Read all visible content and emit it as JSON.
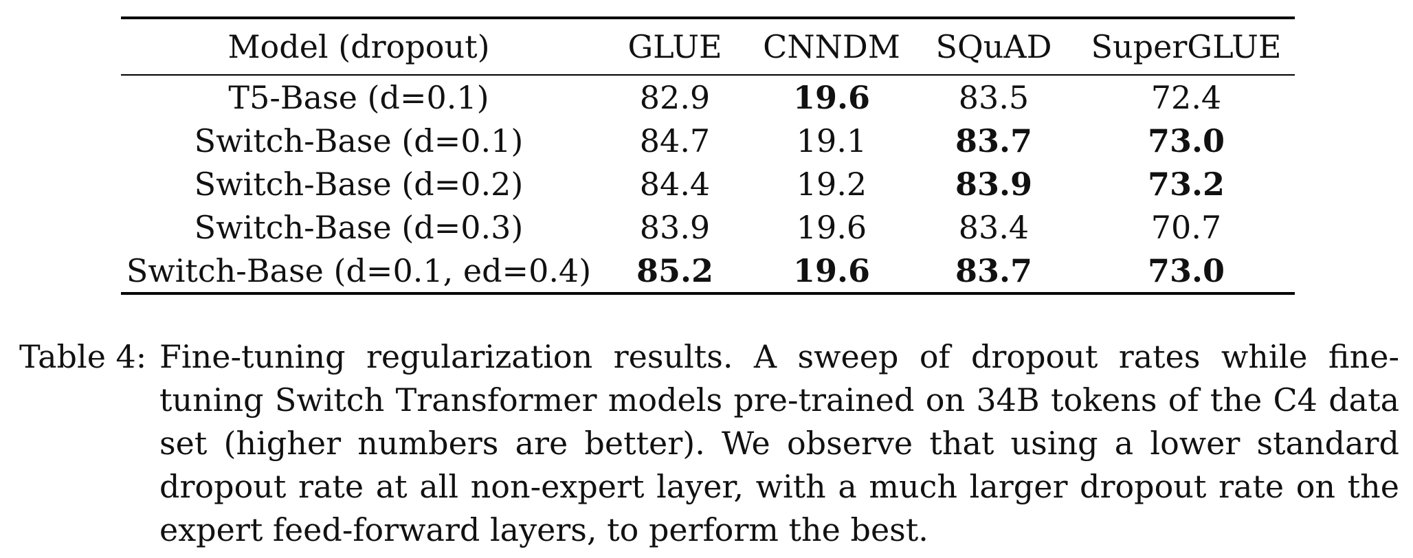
{
  "table": {
    "columns": [
      "Model (dropout)",
      "GLUE",
      "CNNDM",
      "SQuAD",
      "SuperGLUE"
    ],
    "rows": [
      {
        "model": "T5-Base (d=0.1)",
        "glue": "82.9",
        "cnndm": "19.6",
        "squad": "83.5",
        "superglue": "72.4"
      },
      {
        "model": "Switch-Base (d=0.1)",
        "glue": "84.7",
        "cnndm": "19.1",
        "squad": "83.7",
        "superglue": "73.0"
      },
      {
        "model": "Switch-Base (d=0.2)",
        "glue": "84.4",
        "cnndm": "19.2",
        "squad": "83.9",
        "superglue": "73.2"
      },
      {
        "model": "Switch-Base (d=0.3)",
        "glue": "83.9",
        "cnndm": "19.6",
        "squad": "83.4",
        "superglue": "70.7"
      },
      {
        "model": "Switch-Base (d=0.1, ed=0.4)",
        "glue": "85.2",
        "cnndm": "19.6",
        "squad": "83.7",
        "superglue": "73.0"
      }
    ]
  },
  "caption": {
    "label": "Table 4:",
    "text": "Fine-tuning regularization results.  A sweep of dropout rates while fine-tuning Switch Transformer models pre-trained on 34B tokens of the C4 data set (higher numbers are better).  We observe that using a lower standard dropout rate at all non-expert layer, with a much larger dropout rate on the expert feed-forward layers, to perform the best."
  }
}
